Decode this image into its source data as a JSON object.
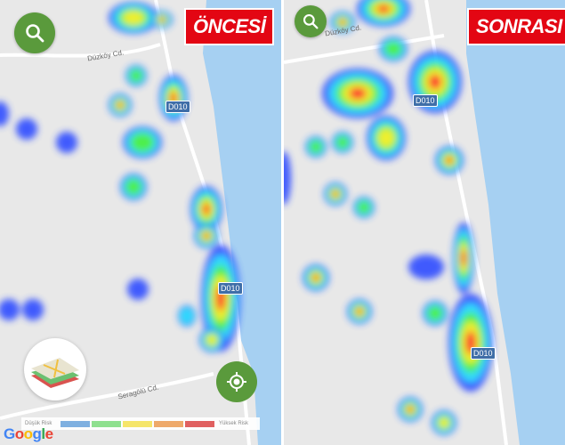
{
  "panels": [
    {
      "badge": "ÖNCESİ",
      "road_labels": [
        "Düzköy Cd.",
        "Seragölü Cd."
      ],
      "highway_labels": [
        "D010",
        "D010"
      ]
    },
    {
      "badge": "SONRASI",
      "road_labels": [
        "Düzköy Cd."
      ],
      "highway_labels": [
        "D010",
        "D010"
      ]
    }
  ],
  "legend": {
    "low_label": "Düşük Risk",
    "high_label": "Yüksek Risk",
    "colors": [
      "#7fb0e0",
      "#8fe08f",
      "#f5e56a",
      "#eea96a",
      "#e06060"
    ]
  },
  "google_logo": "Google",
  "icons": {
    "search": "search-icon",
    "layers": "map-layers-icon",
    "location": "my-location-icon"
  },
  "colors": {
    "button_green": "#5a9a3c",
    "badge_red": "#e30613",
    "water": "#a6d0f2",
    "highway": "#3f6ea8"
  }
}
